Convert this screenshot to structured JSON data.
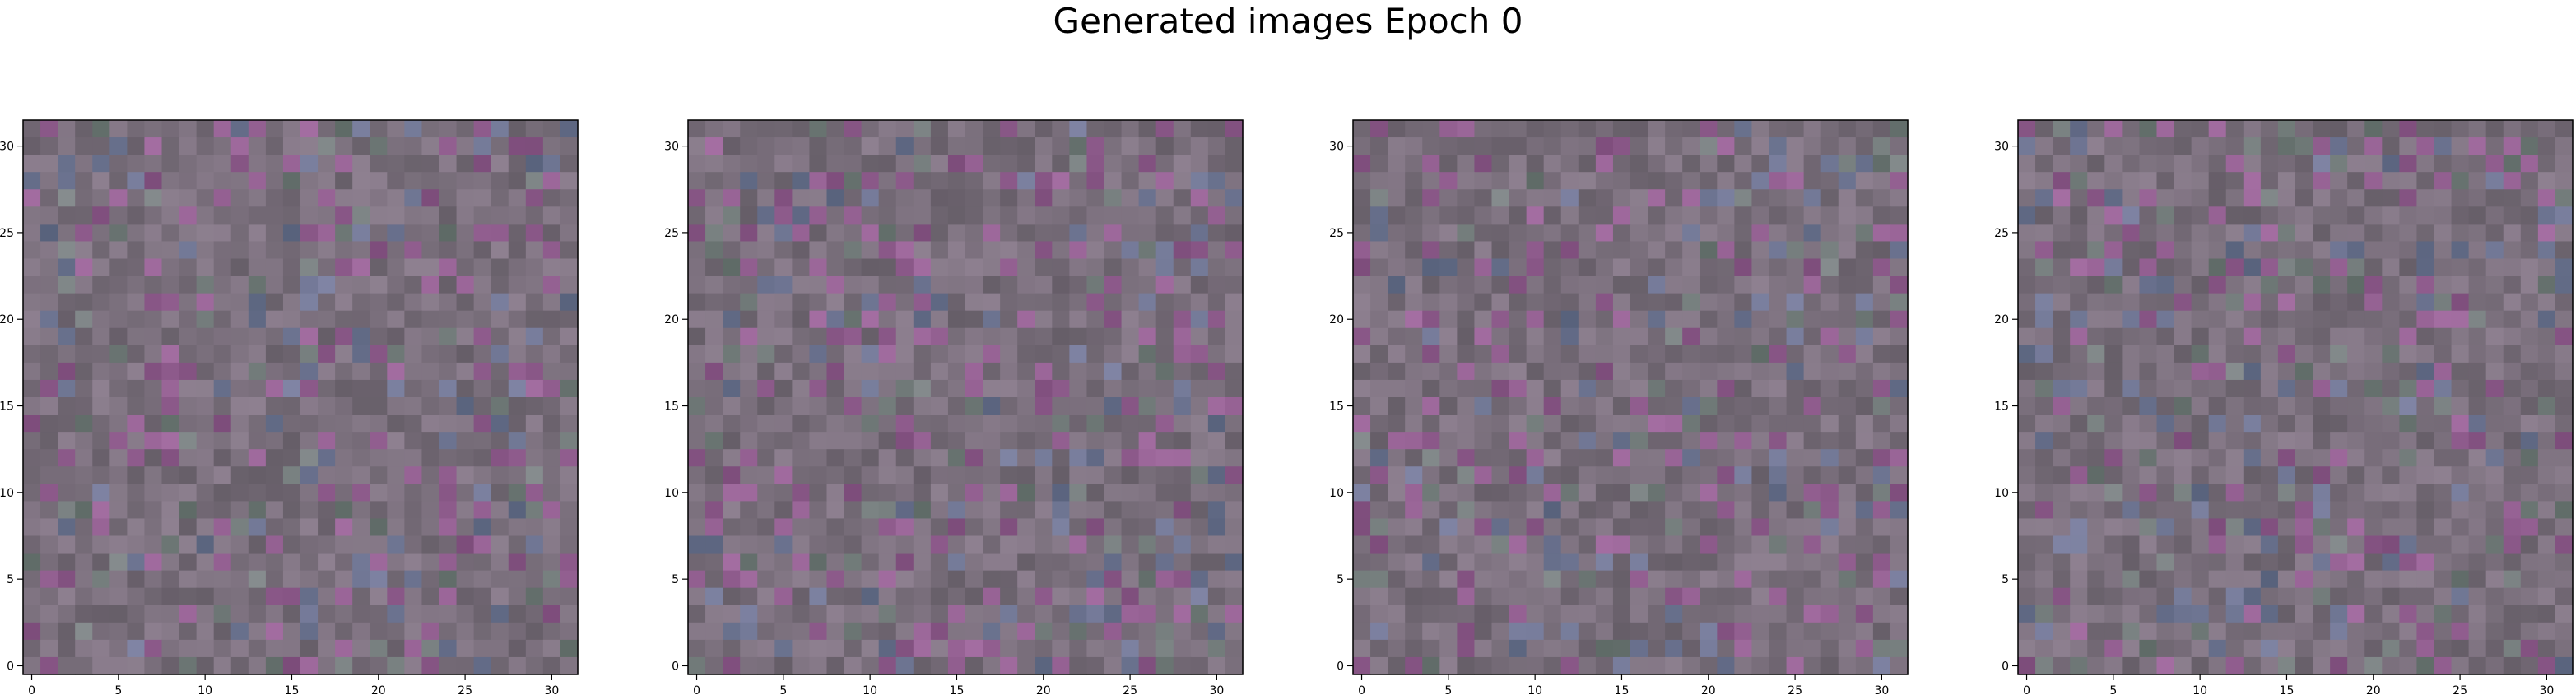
{
  "figure": {
    "title": "Generated images Epoch 0"
  },
  "chart_data": [
    {
      "type": "heatmap",
      "xlim": [
        -0.5,
        31.5
      ],
      "ylim": [
        31.5,
        -0.5
      ],
      "xticks": [
        0,
        5,
        10,
        15,
        20,
        25,
        30
      ],
      "yticks": [
        0,
        5,
        10,
        15,
        20,
        25,
        30
      ],
      "xtick_labels": [
        "0",
        "5",
        "10",
        "15",
        "20",
        "25",
        "30"
      ],
      "ytick_labels": [
        "0",
        "5",
        "10",
        "15",
        "20",
        "25",
        "30"
      ],
      "grid": false,
      "image_shape": [
        32,
        32,
        3
      ],
      "base_color": "#7a6f7c",
      "seed": 11
    },
    {
      "type": "heatmap",
      "xlim": [
        -0.5,
        31.5
      ],
      "ylim": [
        31.5,
        -0.5
      ],
      "xticks": [
        0,
        5,
        10,
        15,
        20,
        25,
        30
      ],
      "yticks": [
        0,
        5,
        10,
        15,
        20,
        25,
        30
      ],
      "xtick_labels": [
        "0",
        "5",
        "10",
        "15",
        "20",
        "25",
        "30"
      ],
      "ytick_labels": [
        "0",
        "5",
        "10",
        "15",
        "20",
        "25",
        "30"
      ],
      "grid": false,
      "image_shape": [
        32,
        32,
        3
      ],
      "base_color": "#7a6f7c",
      "seed": 23
    },
    {
      "type": "heatmap",
      "xlim": [
        -0.5,
        31.5
      ],
      "ylim": [
        31.5,
        -0.5
      ],
      "xticks": [
        0,
        5,
        10,
        15,
        20,
        25,
        30
      ],
      "yticks": [
        0,
        5,
        10,
        15,
        20,
        25,
        30
      ],
      "xtick_labels": [
        "0",
        "5",
        "10",
        "15",
        "20",
        "25",
        "30"
      ],
      "ytick_labels": [
        "0",
        "5",
        "10",
        "15",
        "20",
        "25",
        "30"
      ],
      "grid": false,
      "image_shape": [
        32,
        32,
        3
      ],
      "base_color": "#7a6f7c",
      "seed": 37
    },
    {
      "type": "heatmap",
      "xlim": [
        -0.5,
        31.5
      ],
      "ylim": [
        31.5,
        -0.5
      ],
      "xticks": [
        0,
        5,
        10,
        15,
        20,
        25,
        30
      ],
      "yticks": [
        0,
        5,
        10,
        15,
        20,
        25,
        30
      ],
      "xtick_labels": [
        "0",
        "5",
        "10",
        "15",
        "20",
        "25",
        "30"
      ],
      "ytick_labels": [
        "0",
        "5",
        "10",
        "15",
        "20",
        "25",
        "30"
      ],
      "grid": false,
      "image_shape": [
        32,
        32,
        3
      ],
      "base_color": "#7a6f7c",
      "seed": 53
    }
  ]
}
